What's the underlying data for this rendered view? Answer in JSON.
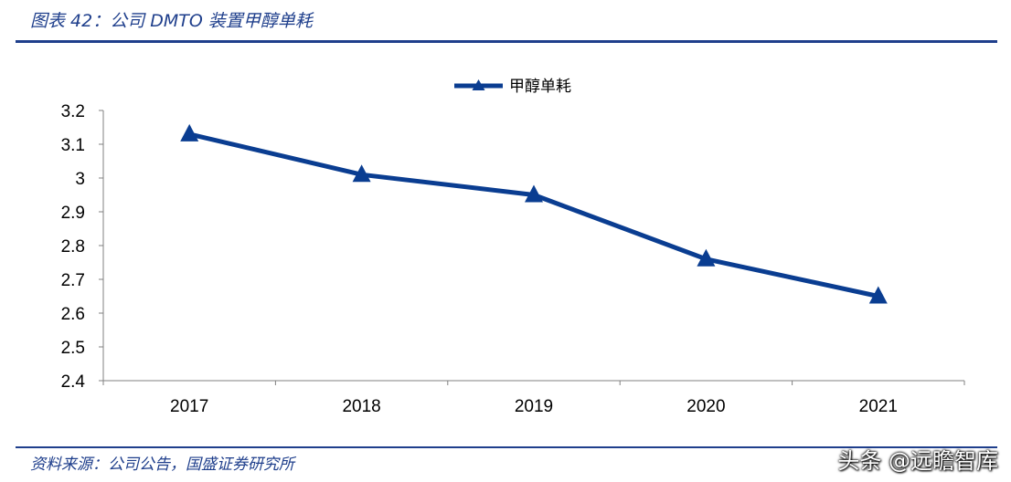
{
  "header": {
    "title": "图表 42：公司 DMTO 装置甲醇单耗"
  },
  "footer": {
    "source": "资料来源：公司公告，国盛证券研究所",
    "watermark": "头条 @远瞻智库"
  },
  "colors": {
    "accent": "#0a3d91",
    "rule": "#1f3f8c"
  },
  "chart_data": {
    "type": "line",
    "categories": [
      "2017",
      "2018",
      "2019",
      "2020",
      "2021"
    ],
    "series": [
      {
        "name": "甲醇单耗",
        "values": [
          3.13,
          3.01,
          2.95,
          2.76,
          2.65
        ],
        "marker": "triangle"
      }
    ],
    "ylim": [
      2.4,
      3.2
    ],
    "yticks": [
      "3.2",
      "3.1",
      "3",
      "2.9",
      "2.8",
      "2.7",
      "2.6",
      "2.5",
      "2.4"
    ],
    "grid": false,
    "legend": "top-center",
    "title": "",
    "xlabel": "",
    "ylabel": ""
  }
}
